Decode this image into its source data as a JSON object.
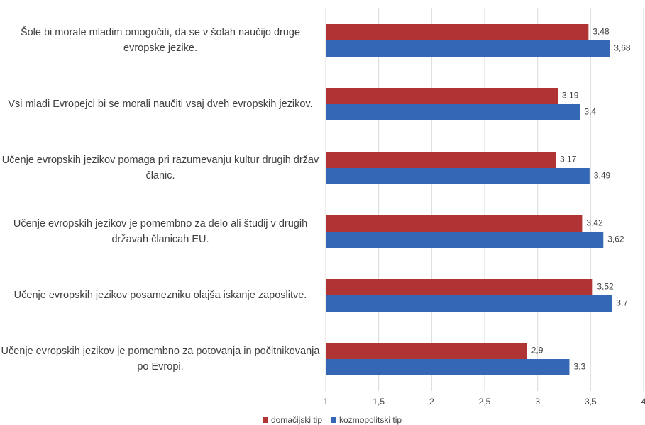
{
  "chart_data": {
    "type": "bar",
    "orientation": "horizontal",
    "categories": [
      "Šole bi morale mladim omogočiti, da se v šolah naučijo druge evropske jezike.",
      "Vsi mladi Evropejci bi se morali naučiti vsaj dveh evropskih jezikov.",
      "Učenje evropskih jezikov pomaga pri razumevanju kultur drugih držav članic.",
      "Učenje evropskih jezikov je pomembno za delo ali študij v drugih državah članicah EU.",
      "Učenje evropskih jezikov posamezniku olajša iskanje zaposlitve.",
      "Učenje evropskih jezikov je pomembno za potovanja in počitnikovanja po Evropi."
    ],
    "series": [
      {
        "name": "domačijski tip",
        "color": "#b03434",
        "values": [
          3.48,
          3.19,
          3.17,
          3.42,
          3.52,
          2.9
        ],
        "value_labels": [
          "3,48",
          "3,19",
          "3,17",
          "3,42",
          "3,52",
          "2,9"
        ]
      },
      {
        "name": "kozmopolitski tip",
        "color": "#3467b4",
        "values": [
          3.68,
          3.4,
          3.49,
          3.62,
          3.7,
          3.3
        ],
        "value_labels": [
          "3,68",
          "3,4",
          "3,49",
          "3,62",
          "3,7",
          "3,3"
        ]
      }
    ],
    "xlim": [
      1,
      4
    ],
    "xticks": [
      1,
      {
        "value": 1.5,
        "label": "1,5"
      },
      2,
      {
        "value": 2.5,
        "label": "2,5"
      },
      3,
      {
        "value": 3.5,
        "label": "3,5"
      },
      4
    ],
    "grid": true,
    "legend": "bottom"
  }
}
